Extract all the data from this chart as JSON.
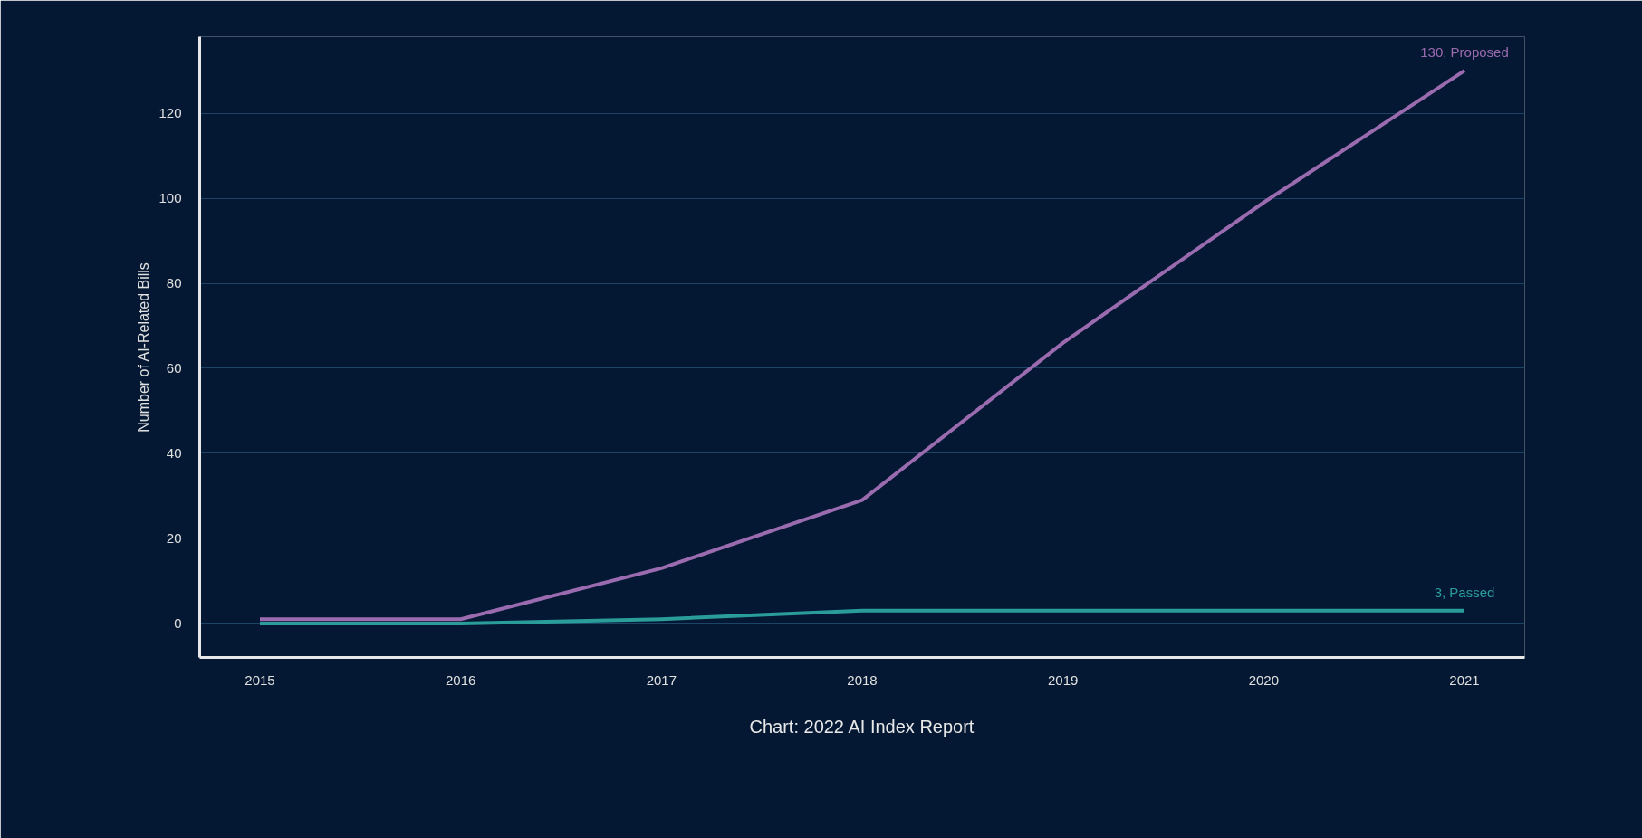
{
  "chart_data": {
    "type": "line",
    "ylabel": "Number of AI-Related Bills",
    "x": [
      2015,
      2016,
      2017,
      2018,
      2019,
      2020,
      2021
    ],
    "series": [
      {
        "color": "#9b6bb0",
        "values": [
          1,
          1,
          13,
          29,
          66,
          99,
          130
        ]
      },
      {
        "color": "#2a9d9a",
        "values": [
          0,
          0,
          1,
          3,
          3,
          3,
          3
        ]
      }
    ],
    "xlim": [
      2014.7,
      2021.3
    ],
    "ylim": [
      -8,
      138
    ],
    "xticks": [
      2015,
      2016,
      2017,
      2018,
      2019,
      2020,
      2021
    ],
    "yticks": [
      0,
      20,
      40,
      60,
      80,
      100,
      120
    ],
    "grid": "y",
    "marker": "none",
    "line_style": "solid",
    "annotations": [
      {
        "text": "130, Proposed",
        "x": 2021,
        "y": 130
      },
      {
        "text": "3, Passed",
        "x": 2021,
        "y": 3
      },
      "Chart: 2022 AI Index Report"
    ]
  }
}
